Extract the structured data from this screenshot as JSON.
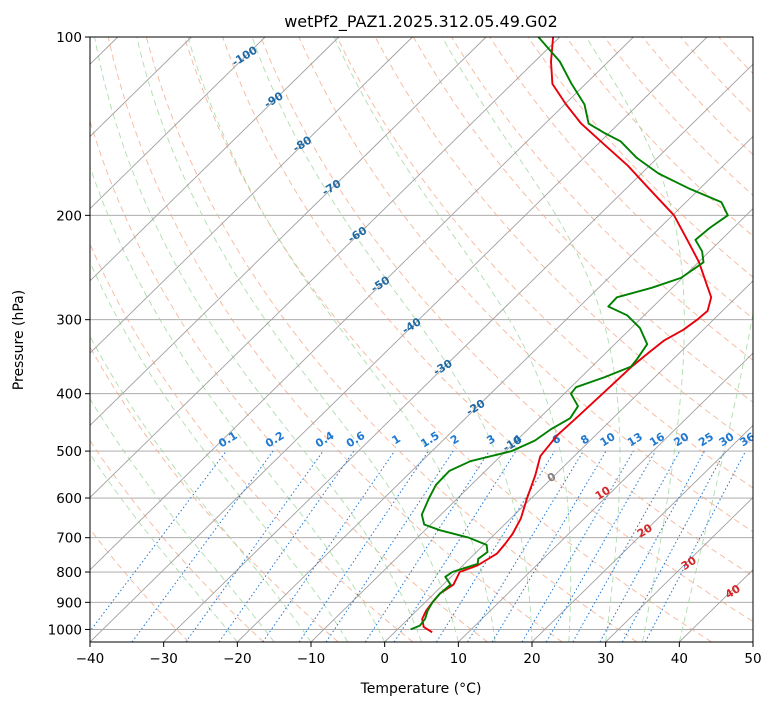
{
  "chart_data": {
    "type": "line",
    "subtype": "skew-t log-p diagram",
    "title": "wetPf2_PAZ1.2025.312.05.49.G02",
    "xlabel": "Temperature (°C)",
    "ylabel": "Pressure (hPa)",
    "xlim": [
      -40,
      50
    ],
    "ylim": [
      1050,
      100
    ],
    "y_scale": "log",
    "x_ticks": [
      "−40",
      "−30",
      "−20",
      "−10",
      "0",
      "10",
      "20",
      "30",
      "40",
      "50"
    ],
    "x_tick_values": [
      -40,
      -30,
      -20,
      -10,
      0,
      10,
      20,
      30,
      40,
      50
    ],
    "y_ticks": [
      "100",
      "200",
      "300",
      "400",
      "500",
      "600",
      "700",
      "800",
      "900",
      "1000"
    ],
    "y_tick_values": [
      100,
      200,
      300,
      400,
      500,
      600,
      700,
      800,
      900,
      1000
    ],
    "grid": true,
    "colors": {
      "temperature": "#e8000b",
      "dewpoint": "#008000",
      "isotherm": "#a0a0a0",
      "dry_adiabat": "#f4a582",
      "moist_adiabat": "#a6d8a6",
      "mixing_ratio": "#1f78d1",
      "theta_e_label": "#d62728",
      "isotherm_label": "#1f6aa5"
    },
    "series": [
      {
        "key": "temperature",
        "color": "#e8000b",
        "points": [
          [
            1011,
            5.1
          ],
          [
            990,
            3.2
          ],
          [
            960,
            1.9
          ],
          [
            930,
            1.3
          ],
          [
            900,
            1.0
          ],
          [
            870,
            0.8
          ],
          [
            840,
            1.4
          ],
          [
            800,
            0.5
          ],
          [
            780,
            2.0
          ],
          [
            745,
            3.0
          ],
          [
            720,
            2.8
          ],
          [
            690,
            2.4
          ],
          [
            650,
            1.4
          ],
          [
            600,
            -0.6
          ],
          [
            550,
            -2.6
          ],
          [
            510,
            -4.6
          ],
          [
            470,
            -5.2
          ],
          [
            440,
            -5.0
          ],
          [
            400,
            -4.8
          ],
          [
            360,
            -4.6
          ],
          [
            340,
            -4.2
          ],
          [
            325,
            -3.8
          ],
          [
            312,
            -2.7
          ],
          [
            300,
            -2.2
          ],
          [
            290,
            -2.0
          ],
          [
            275,
            -3.4
          ],
          [
            260,
            -6.1
          ],
          [
            240,
            -9.9
          ],
          [
            220,
            -14.6
          ],
          [
            200,
            -19.8
          ],
          [
            180,
            -27.0
          ],
          [
            165,
            -32.9
          ],
          [
            150,
            -40.0
          ],
          [
            140,
            -45.1
          ],
          [
            130,
            -49.8
          ],
          [
            120,
            -54.5
          ],
          [
            110,
            -57.8
          ],
          [
            100,
            -60.9
          ]
        ]
      },
      {
        "key": "dewpoint",
        "color": "#008000",
        "points": [
          [
            1000,
            1.8
          ],
          [
            985,
            2.5
          ],
          [
            960,
            2.3
          ],
          [
            930,
            1.5
          ],
          [
            900,
            1.0
          ],
          [
            870,
            0.8
          ],
          [
            840,
            1.0
          ],
          [
            815,
            -0.8
          ],
          [
            800,
            -0.5
          ],
          [
            790,
            0.4
          ],
          [
            775,
            1.8
          ],
          [
            760,
            1.2
          ],
          [
            740,
            1.5
          ],
          [
            720,
            0.4
          ],
          [
            700,
            -3.0
          ],
          [
            680,
            -8.0
          ],
          [
            665,
            -10.9
          ],
          [
            640,
            -12.6
          ],
          [
            600,
            -13.9
          ],
          [
            570,
            -14.8
          ],
          [
            540,
            -14.9
          ],
          [
            520,
            -13.4
          ],
          [
            500,
            -9.2
          ],
          [
            480,
            -7.5
          ],
          [
            460,
            -6.9
          ],
          [
            440,
            -5.8
          ],
          [
            420,
            -6.4
          ],
          [
            400,
            -9.1
          ],
          [
            390,
            -9.3
          ],
          [
            375,
            -6.8
          ],
          [
            360,
            -4.7
          ],
          [
            350,
            -4.9
          ],
          [
            330,
            -5.6
          ],
          [
            310,
            -8.8
          ],
          [
            295,
            -12.3
          ],
          [
            285,
            -16.1
          ],
          [
            275,
            -16.2
          ],
          [
            265,
            -12.8
          ],
          [
            255,
            -10.2
          ],
          [
            240,
            -9.3
          ],
          [
            230,
            -11.0
          ],
          [
            220,
            -13.5
          ],
          [
            210,
            -13.2
          ],
          [
            200,
            -12.5
          ],
          [
            190,
            -15.2
          ],
          [
            180,
            -21.6
          ],
          [
            170,
            -27.7
          ],
          [
            160,
            -32.8
          ],
          [
            150,
            -37.3
          ],
          [
            145,
            -40.8
          ],
          [
            140,
            -44.1
          ],
          [
            130,
            -47.3
          ],
          [
            120,
            -51.9
          ],
          [
            110,
            -56.6
          ],
          [
            100,
            -62.9
          ]
        ]
      }
    ],
    "isotherm_labels": [
      "-100",
      "-90",
      "-80",
      "-70",
      "-60",
      "-50",
      "-40",
      "-30",
      "-20",
      "-10"
    ],
    "isotherm_label_values": [
      -100,
      -90,
      -80,
      -70,
      -60,
      -50,
      -40,
      -30,
      -20,
      -10
    ],
    "isotherm_zero_label": "0",
    "mixing_ratio_labels": [
      "0.1",
      "0.2",
      "0.4",
      "0.6",
      "1",
      "1.5",
      "2",
      "3",
      "4",
      "6",
      "8",
      "10",
      "13",
      "16",
      "20",
      "25",
      "30",
      "36"
    ],
    "mixing_ratio_values": [
      0.1,
      0.2,
      0.4,
      0.6,
      1,
      1.5,
      2,
      3,
      4,
      6,
      8,
      10,
      13,
      16,
      20,
      25,
      30,
      36
    ],
    "theta_e_labels": [
      "10",
      "20",
      "30",
      "40"
    ],
    "theta_e_values": [
      10,
      20,
      30,
      40
    ]
  }
}
